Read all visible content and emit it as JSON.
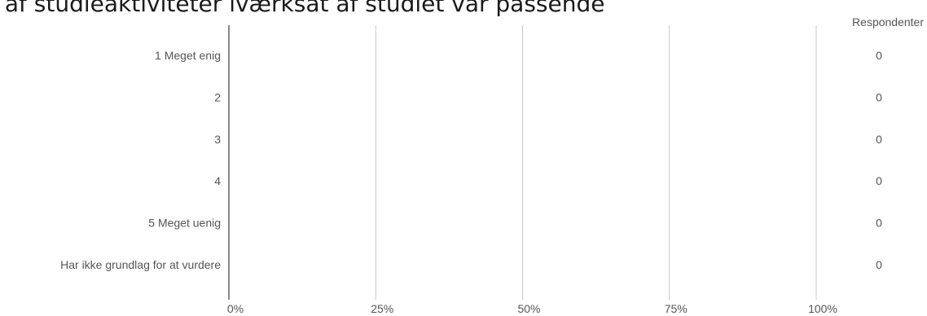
{
  "title": "t af studieaktiviteter iværksat af studiet var passende",
  "count_header": "Respondenter",
  "chart_data": {
    "type": "bar",
    "orientation": "horizontal",
    "title": "t af studieaktiviteter iværksat af studiet var passende",
    "categories": [
      "1 Meget enig",
      "2",
      "3",
      "4",
      "5 Meget uenig",
      "Har ikke grundlag for at vurdere"
    ],
    "values": [
      0,
      0,
      0,
      0,
      0,
      0
    ],
    "counts": [
      "0",
      "0",
      "0",
      "0",
      "0",
      "0"
    ],
    "x_ticks": [
      "0%",
      "25%",
      "50%",
      "75%",
      "100%"
    ],
    "xlim": [
      0,
      100
    ],
    "grid": true,
    "colors": {
      "grid": "#c8c8c8",
      "axis": "#8a8a8a",
      "label": "#555555",
      "bar": "#4a7ebb"
    }
  }
}
